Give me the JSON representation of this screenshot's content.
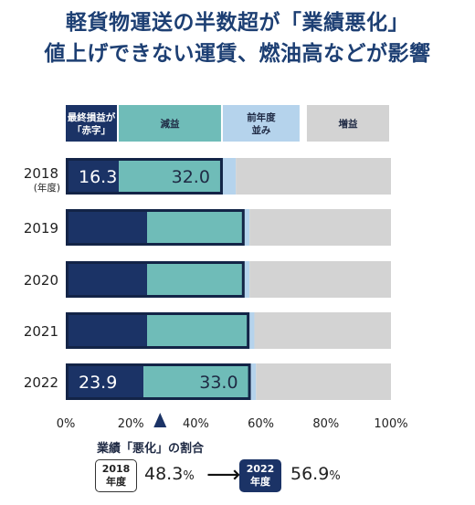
{
  "title": {
    "line1": "軽貨物運送の半数超が「業績悪化」",
    "line2": "値上げできない運賃、燃油高などが影響"
  },
  "chart_data": {
    "type": "bar",
    "orientation": "horizontal",
    "stacked": true,
    "percent": true,
    "categories": [
      "2018",
      "2019",
      "2020",
      "2021",
      "2022"
    ],
    "category_unit": "(年度)",
    "series": [
      {
        "name": "最終損益が「赤字」",
        "color": "#1b3366",
        "values": [
          16.3,
          25.0,
          25.0,
          25.0,
          23.9
        ],
        "labels": [
          "16.3",
          "",
          "",
          "",
          "23.9"
        ]
      },
      {
        "name": "減益",
        "color": "#6fbcb8",
        "values": [
          32.0,
          30.0,
          30.0,
          31.5,
          33.0
        ],
        "labels": [
          "32.0",
          "",
          "",
          "",
          "33.0"
        ]
      },
      {
        "name": "前年度並み",
        "color": "#b5d3ec",
        "values": [
          4.0,
          1.5,
          1.5,
          1.5,
          1.6
        ],
        "labels": [
          "",
          "",
          "",
          "",
          ""
        ]
      },
      {
        "name": "増益",
        "color": "#d3d3d3",
        "values": [
          47.7,
          43.5,
          43.5,
          42.0,
          41.5
        ],
        "labels": [
          "",
          "",
          "",
          "",
          ""
        ]
      }
    ],
    "xlim": [
      0,
      100
    ],
    "xticks": [
      "0%",
      "20%",
      "40%",
      "60%",
      "80%",
      "100%"
    ],
    "marker_value": 29,
    "grid": false
  },
  "summary": {
    "label": "業績「悪化」の割合",
    "from_year": "2018",
    "from_unit": "年度",
    "from_value": "48.3",
    "to_year": "2022",
    "to_unit": "年度",
    "to_value": "56.9",
    "pct_sign": "%",
    "arrow": "⟶"
  }
}
